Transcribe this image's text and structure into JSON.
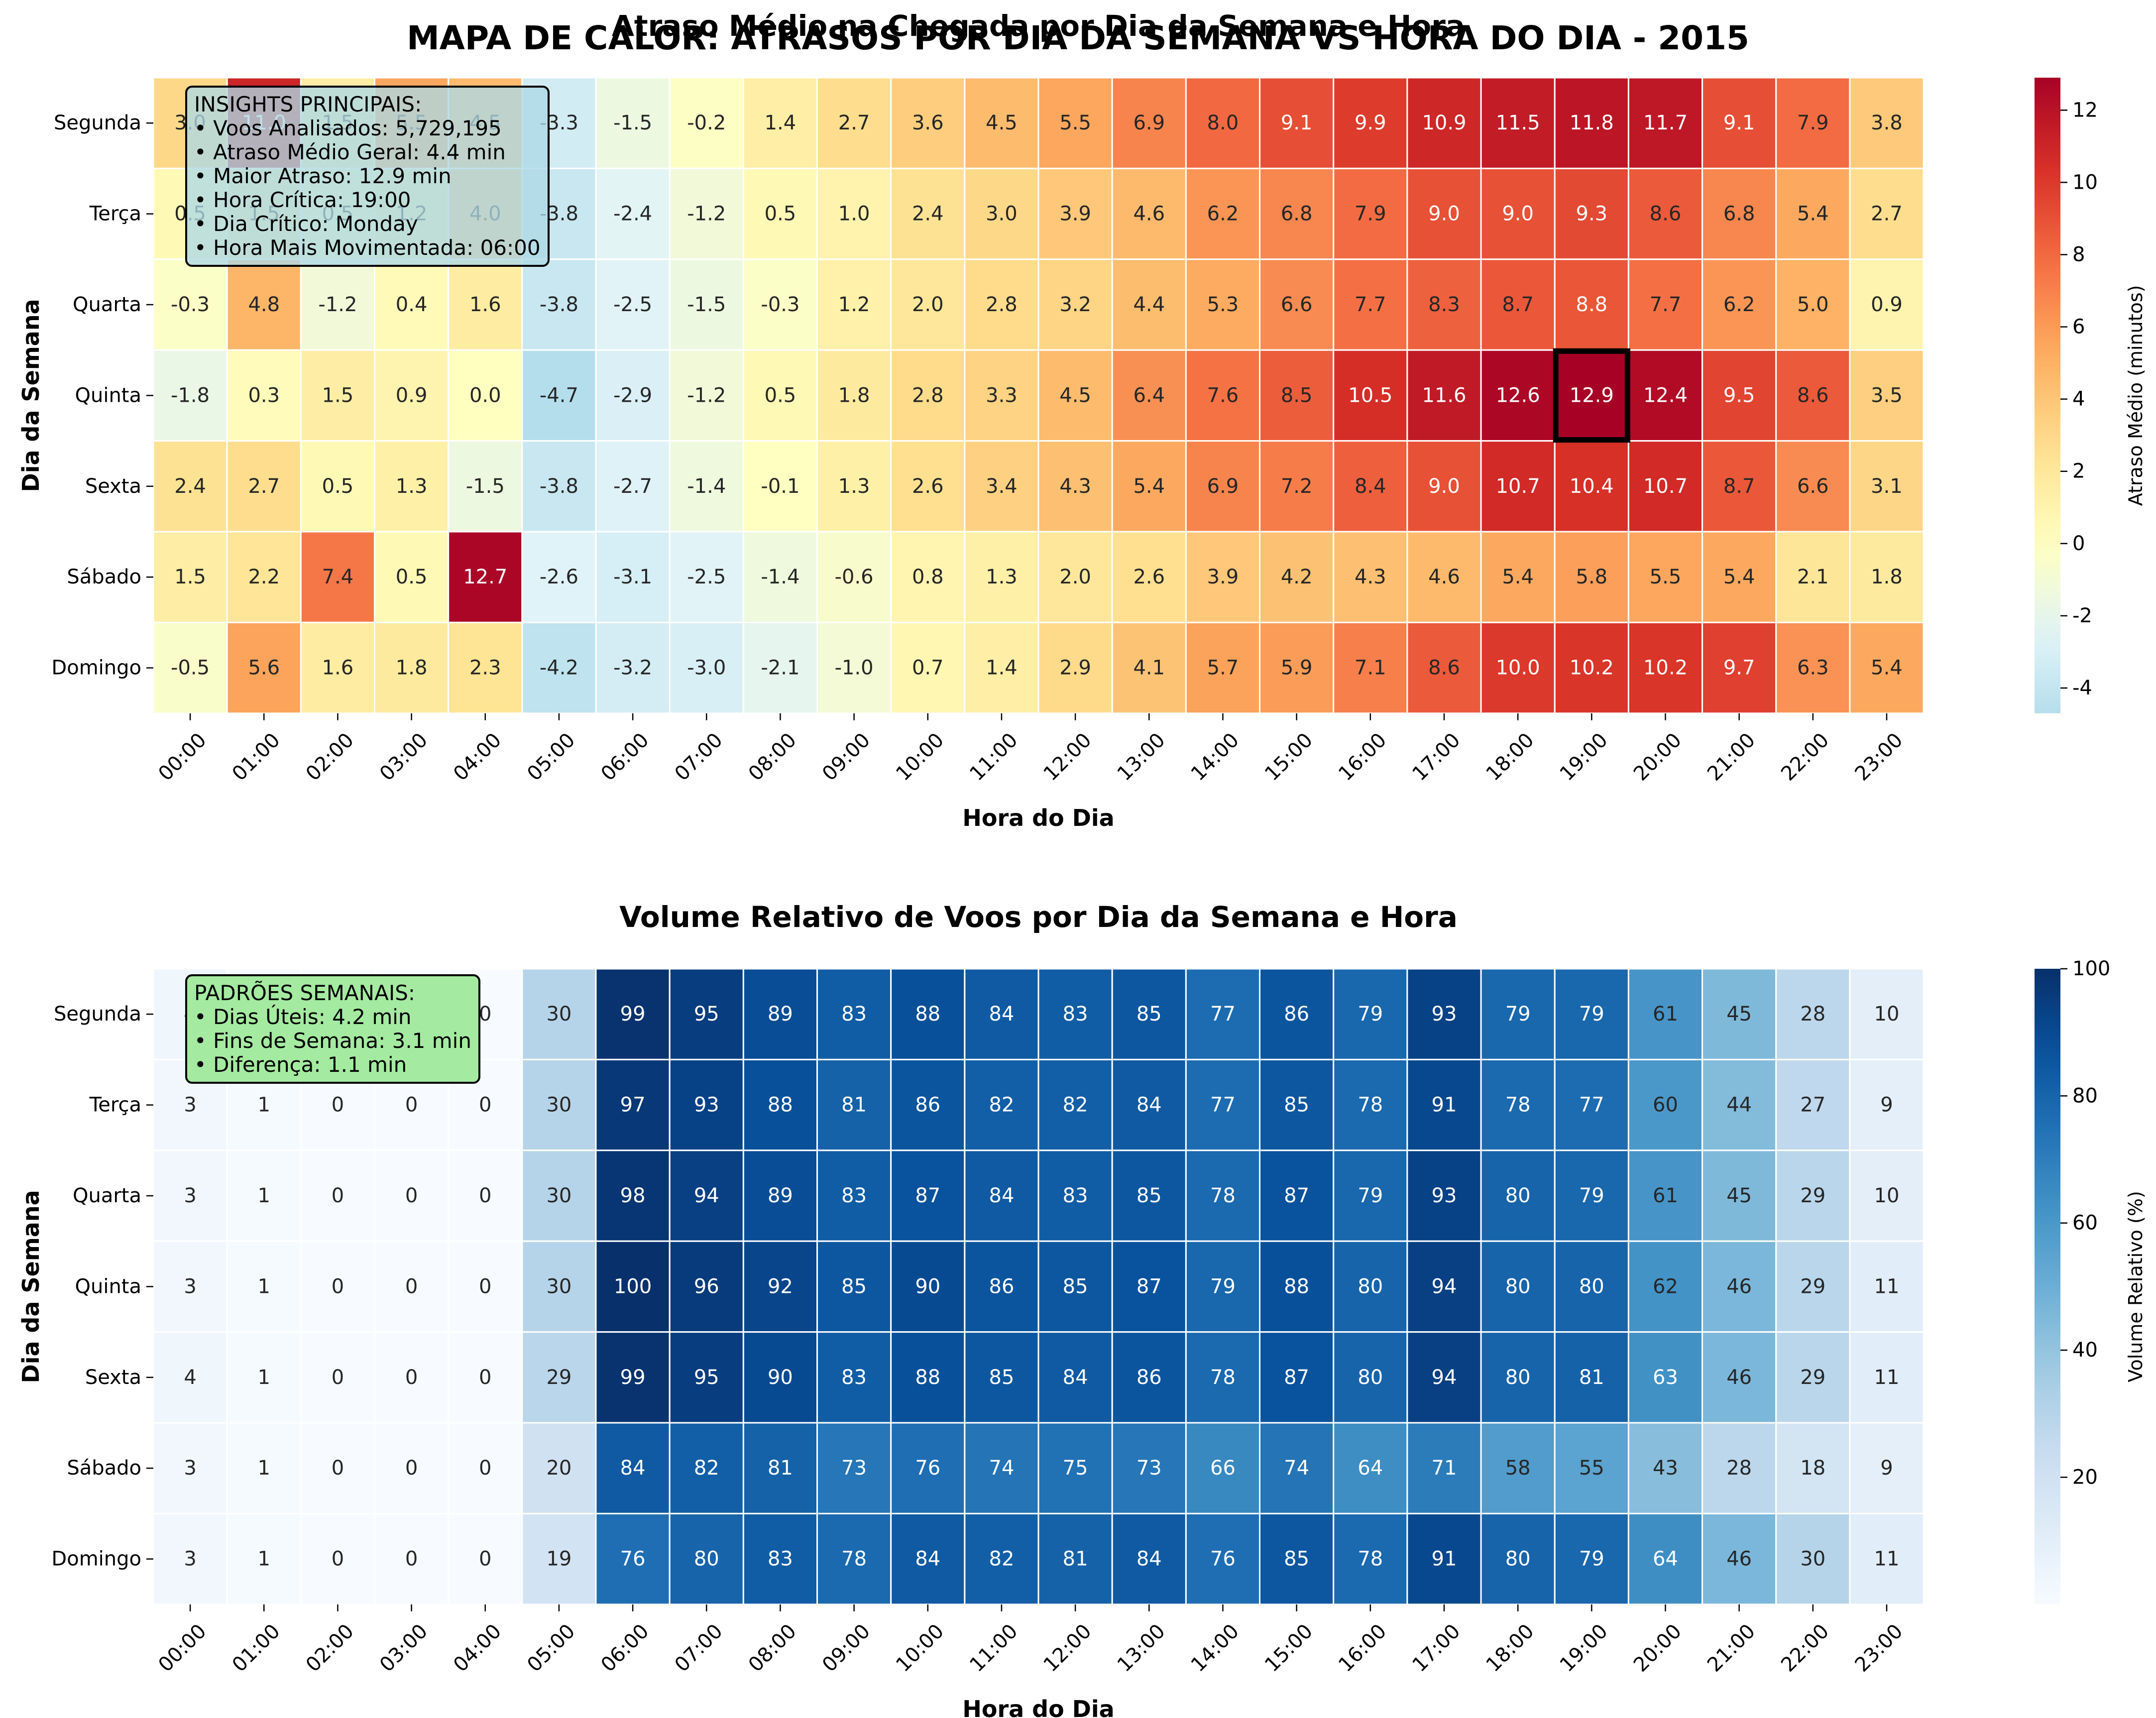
{
  "suptitle": "MAPA DE CALOR: ATRASOS POR DIA DA SEMANA VS HORA DO DIA - 2015",
  "colors": {
    "highlight_border": "#000000",
    "insights_box_bg": "#b0d8e0",
    "patterns_box_bg": "#a4eaa0"
  },
  "insights": {
    "title": "INSIGHTS PRINCIPAIS:",
    "lines": [
      "• Voos Analisados: 5,729,195",
      "• Atraso Médio Geral: 4.4 min",
      "• Maior Atraso: 12.9 min",
      "• Hora Crítica: 19:00",
      "• Dia Crítico: Monday",
      "• Hora Mais Movimentada: 06:00"
    ]
  },
  "patterns": {
    "title": "PADRÕES SEMANAIS:",
    "lines": [
      "• Dias Úteis: 4.2 min",
      "• Fins de Semana: 3.1 min",
      "• Diferença: 1.1 min"
    ]
  },
  "chart_data": [
    {
      "type": "heatmap",
      "title": "Atraso Médio na Chegada por Dia da Semana e Hora",
      "xlabel": "Hora do Dia",
      "ylabel": "Dia da Semana",
      "colorbar_label": "Atraso Médio (minutos)",
      "colormap": "RdYlBu_r",
      "value_range": [
        -4.7,
        12.9
      ],
      "colorbar_ticks": [
        -4,
        -2,
        0,
        2,
        4,
        6,
        8,
        10,
        12
      ],
      "x": [
        "00:00",
        "01:00",
        "02:00",
        "03:00",
        "04:00",
        "05:00",
        "06:00",
        "07:00",
        "08:00",
        "09:00",
        "10:00",
        "11:00",
        "12:00",
        "13:00",
        "14:00",
        "15:00",
        "16:00",
        "17:00",
        "18:00",
        "19:00",
        "20:00",
        "21:00",
        "22:00",
        "23:00"
      ],
      "y": [
        "Segunda",
        "Terça",
        "Quarta",
        "Quinta",
        "Sexta",
        "Sábado",
        "Domingo"
      ],
      "values": [
        [
          3.0,
          11.0,
          1.5,
          5.5,
          4.5,
          -3.3,
          -1.5,
          -0.2,
          1.4,
          2.7,
          3.6,
          4.5,
          5.5,
          6.9,
          8.0,
          9.1,
          9.9,
          10.9,
          11.5,
          11.8,
          11.7,
          9.1,
          7.9,
          3.8
        ],
        [
          0.5,
          1.5,
          0.5,
          1.2,
          4.0,
          -3.8,
          -2.4,
          -1.2,
          0.5,
          1.0,
          2.4,
          3.0,
          3.9,
          4.6,
          6.2,
          6.8,
          7.9,
          9.0,
          9.0,
          9.3,
          8.6,
          6.8,
          5.4,
          2.7
        ],
        [
          -0.3,
          4.8,
          -1.2,
          0.4,
          1.6,
          -3.8,
          -2.5,
          -1.5,
          -0.3,
          1.2,
          2.0,
          2.8,
          3.2,
          4.4,
          5.3,
          6.6,
          7.7,
          8.3,
          8.7,
          8.8,
          7.7,
          6.2,
          5.0,
          0.9
        ],
        [
          -1.8,
          0.3,
          1.5,
          0.9,
          -0.0,
          -4.7,
          -2.9,
          -1.2,
          0.5,
          1.8,
          2.8,
          3.3,
          4.5,
          6.4,
          7.6,
          8.5,
          10.5,
          11.6,
          12.6,
          12.9,
          12.4,
          9.5,
          8.6,
          3.5
        ],
        [
          2.4,
          2.7,
          0.5,
          1.3,
          -1.5,
          -3.8,
          -2.7,
          -1.4,
          -0.1,
          1.3,
          2.6,
          3.4,
          4.3,
          5.4,
          6.9,
          7.2,
          8.4,
          9.0,
          10.7,
          10.4,
          10.7,
          8.7,
          6.6,
          3.1
        ],
        [
          1.5,
          2.2,
          7.4,
          0.5,
          12.7,
          -2.6,
          -3.1,
          -2.5,
          -1.4,
          -0.6,
          0.8,
          1.3,
          2.0,
          2.6,
          3.9,
          4.2,
          4.3,
          4.6,
          5.4,
          5.8,
          5.5,
          5.4,
          2.1,
          1.8
        ],
        [
          -0.5,
          5.6,
          1.6,
          1.8,
          2.3,
          -4.2,
          -3.2,
          -3.0,
          -2.1,
          -1.0,
          0.7,
          1.4,
          2.9,
          4.1,
          5.7,
          5.9,
          7.1,
          8.6,
          10.0,
          10.2,
          10.2,
          9.7,
          6.3,
          5.4
        ]
      ],
      "highlight": {
        "row": "Quinta",
        "col": "19:00",
        "value": 12.9
      }
    },
    {
      "type": "heatmap",
      "title": "Volume Relativo de Voos por Dia da Semana e Hora",
      "xlabel": "Hora do Dia",
      "ylabel": "Dia da Semana",
      "colorbar_label": "Volume Relativo (%)",
      "colormap": "Blues",
      "value_range": [
        0,
        100
      ],
      "colorbar_ticks": [
        20,
        40,
        60,
        80,
        100
      ],
      "x": [
        "00:00",
        "01:00",
        "02:00",
        "03:00",
        "04:00",
        "05:00",
        "06:00",
        "07:00",
        "08:00",
        "09:00",
        "10:00",
        "11:00",
        "12:00",
        "13:00",
        "14:00",
        "15:00",
        "16:00",
        "17:00",
        "18:00",
        "19:00",
        "20:00",
        "21:00",
        "22:00",
        "23:00"
      ],
      "y": [
        "Segunda",
        "Terça",
        "Quarta",
        "Quinta",
        "Sexta",
        "Sábado",
        "Domingo"
      ],
      "values": [
        [
          4,
          1,
          0,
          0,
          0,
          30,
          99,
          95,
          89,
          83,
          88,
          84,
          83,
          85,
          77,
          86,
          79,
          93,
          79,
          79,
          61,
          45,
          28,
          10
        ],
        [
          3,
          1,
          0,
          0,
          0,
          30,
          97,
          93,
          88,
          81,
          86,
          82,
          82,
          84,
          77,
          85,
          78,
          91,
          78,
          77,
          60,
          44,
          27,
          9
        ],
        [
          3,
          1,
          0,
          0,
          0,
          30,
          98,
          94,
          89,
          83,
          87,
          84,
          83,
          85,
          78,
          87,
          79,
          93,
          80,
          79,
          61,
          45,
          29,
          10
        ],
        [
          3,
          1,
          0,
          0,
          0,
          30,
          100,
          96,
          92,
          85,
          90,
          86,
          85,
          87,
          79,
          88,
          80,
          94,
          80,
          80,
          62,
          46,
          29,
          11
        ],
        [
          4,
          1,
          0,
          0,
          0,
          29,
          99,
          95,
          90,
          83,
          88,
          85,
          84,
          86,
          78,
          87,
          80,
          94,
          80,
          81,
          63,
          46,
          29,
          11
        ],
        [
          3,
          1,
          0,
          0,
          0,
          20,
          84,
          82,
          81,
          73,
          76,
          74,
          75,
          73,
          66,
          74,
          64,
          71,
          58,
          55,
          43,
          28,
          18,
          9
        ],
        [
          3,
          1,
          0,
          0,
          0,
          19,
          76,
          80,
          83,
          78,
          84,
          82,
          81,
          84,
          76,
          85,
          78,
          91,
          80,
          79,
          64,
          46,
          30,
          11
        ]
      ]
    }
  ]
}
